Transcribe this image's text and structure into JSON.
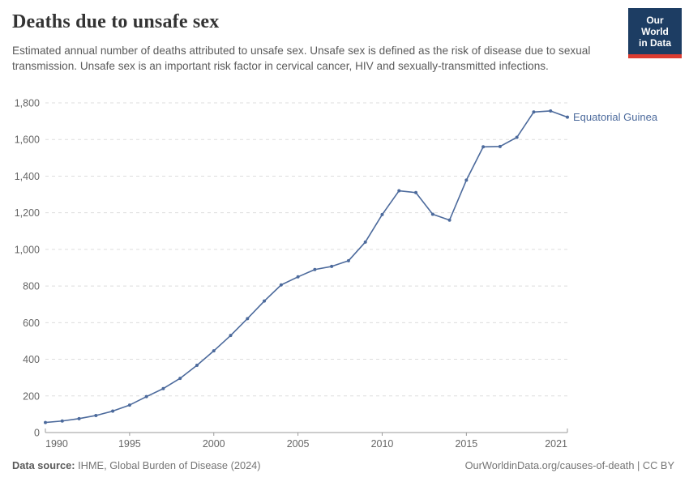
{
  "header": {
    "title": "Deaths due to unsafe sex",
    "subtitle": "Estimated annual number of deaths attributed to unsafe sex. Unsafe sex is defined as the risk of disease due to sexual transmission. Unsafe sex is an important risk factor in cervical cancer, HIV and sexually-transmitted infections.",
    "logo": {
      "line1": "Our World",
      "line2": "in Data",
      "bg_color": "#1d3d63",
      "bar_color": "#dc3c31"
    }
  },
  "chart_data": {
    "type": "line",
    "title": "Deaths due to unsafe sex",
    "xlabel": "",
    "ylabel": "",
    "xlim": [
      1990,
      2021
    ],
    "ylim": [
      0,
      1800
    ],
    "grid": "horizontal-dashed",
    "legend_position": "end-of-line-label",
    "x_ticks": [
      1990,
      1995,
      2000,
      2005,
      2010,
      2015,
      2021
    ],
    "y_ticks": [
      0,
      200,
      400,
      600,
      800,
      1000,
      1200,
      1400,
      1600,
      1800
    ],
    "x": [
      1990,
      1991,
      1992,
      1993,
      1994,
      1995,
      1996,
      1997,
      1998,
      1999,
      2000,
      2001,
      2002,
      2003,
      2004,
      2005,
      2006,
      2007,
      2008,
      2009,
      2010,
      2011,
      2012,
      2013,
      2014,
      2015,
      2016,
      2017,
      2018,
      2019,
      2020,
      2021
    ],
    "series": [
      {
        "name": "Equatorial Guinea",
        "color": "#4c6a9c",
        "values": [
          55,
          63,
          76,
          93,
          117,
          150,
          196,
          240,
          296,
          367,
          446,
          530,
          622,
          718,
          806,
          850,
          890,
          907,
          938,
          1040,
          1190,
          1320,
          1310,
          1192,
          1160,
          1378,
          1560,
          1562,
          1612,
          1750,
          1756,
          1722
        ]
      }
    ],
    "theme": {
      "grid_color": "#dddddd",
      "axis_color": "#9a9a9a",
      "tick_label_color": "#666666"
    }
  },
  "footer": {
    "source_label": "Data source:",
    "source_text": " IHME, Global Burden of Disease (2024)",
    "credit": "OurWorldinData.org/causes-of-death | CC BY"
  }
}
